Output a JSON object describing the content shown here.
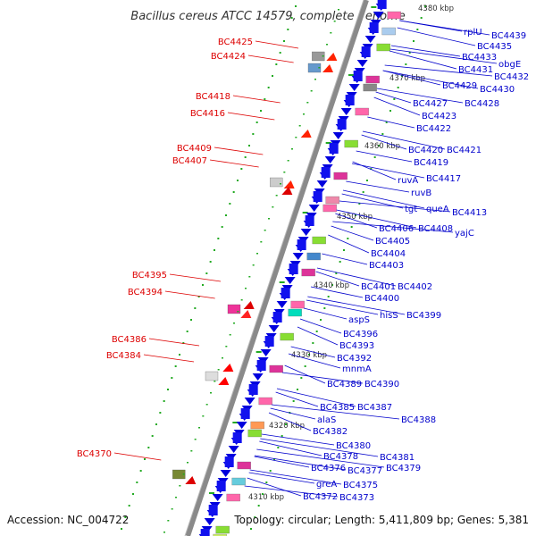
{
  "title": "Bacillus cereus ATCC 14579, complete genome",
  "accession": "Accession: NC_004722",
  "topology": "Topology: circular; Length: 5,411,809 bp; Genes: 5,381",
  "colors": {
    "right_label": "#0000cc",
    "left_label": "#dd0000",
    "backbone": "#808080",
    "tick": "#22aa22",
    "gene_forward": "#dd0000",
    "gene_reverse": "#0000dd"
  },
  "kbp_marks": [
    "4310 kbp",
    "4320 kbp",
    "4330 kbp",
    "4340 kbp",
    "4350 kbp",
    "4360 kbp",
    "4370 kbp",
    "4380 kbp"
  ],
  "right_labels": [
    "rplU",
    "BC4439",
    "BC4435",
    "BC4433",
    "obgE",
    "BC4431",
    "BC4432",
    "BC4429",
    "BC4430",
    "BC4427",
    "BC4428",
    "BC4423",
    "BC4422",
    "BC4420",
    "BC4421",
    "BC4419",
    "BC4417",
    "ruvA",
    "ruvB",
    "tgt",
    "queA",
    "BC4413",
    "BC4406",
    "BC4408",
    "yajC",
    "BC4405",
    "BC4404",
    "BC4403",
    "BC4401",
    "BC4402",
    "BC4400",
    "hisS",
    "BC4399",
    "aspS",
    "BC4396",
    "BC4393",
    "BC4392",
    "mnmA",
    "BC4389",
    "BC4390",
    "BC4385",
    "BC4387",
    "alaS",
    "BC4388",
    "BC4382",
    "BC4380",
    "BC4378",
    "BC4381",
    "BC4376",
    "BC4377",
    "BC4379",
    "greA",
    "BC4375",
    "BC4372",
    "BC4373"
  ],
  "left_labels": [
    "BC4425",
    "BC4424",
    "BC4418",
    "BC4416",
    "BC4409",
    "BC4407",
    "BC4395",
    "BC4394",
    "BC4386",
    "BC4384",
    "BC4370"
  ]
}
